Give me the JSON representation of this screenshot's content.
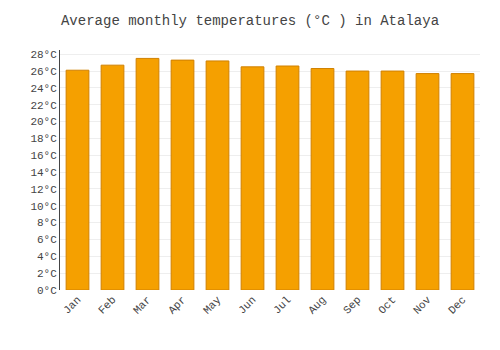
{
  "chart_data": {
    "type": "bar",
    "title": "Average monthly temperatures (°C ) in Atalaya",
    "categories": [
      "Jan",
      "Feb",
      "Mar",
      "Apr",
      "May",
      "Jun",
      "Jul",
      "Aug",
      "Sep",
      "Oct",
      "Nov",
      "Dec"
    ],
    "values": [
      26.1,
      26.7,
      27.5,
      27.3,
      27.2,
      26.5,
      26.6,
      26.3,
      26.0,
      26.0,
      25.7,
      25.7
    ],
    "color": "#F5A000",
    "ylim": [
      0,
      28.5
    ],
    "yticks": [
      {
        "value": 0,
        "label": "0°C"
      },
      {
        "value": 2,
        "label": "2°C"
      },
      {
        "value": 4,
        "label": "4°C"
      },
      {
        "value": 6,
        "label": "6°C"
      },
      {
        "value": 8,
        "label": "8°C"
      },
      {
        "value": 10,
        "label": "10°C"
      },
      {
        "value": 12,
        "label": "12°C"
      },
      {
        "value": 14,
        "label": "14°C"
      },
      {
        "value": 16,
        "label": "16°C"
      },
      {
        "value": 18,
        "label": "18°C"
      },
      {
        "value": 20,
        "label": "20°C"
      },
      {
        "value": 22,
        "label": "22°C"
      },
      {
        "value": 24,
        "label": "24°C"
      },
      {
        "value": 26,
        "label": "26°C"
      },
      {
        "value": 28,
        "label": "28°C"
      }
    ],
    "grid": true
  }
}
